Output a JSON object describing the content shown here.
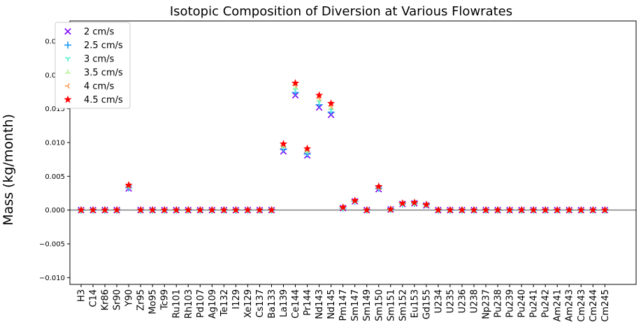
{
  "chart_data": {
    "type": "scatter",
    "title": "Isotopic Composition of Diversion at Various Flowrates",
    "xlabel": "",
    "ylabel": "Mass (kg/month)",
    "ylim": [
      -0.011,
      0.028
    ],
    "yticks": [
      "−0.010",
      "−0.005",
      "0.000",
      "0.005",
      "0.010",
      "0.015",
      "0.020",
      "0.025"
    ],
    "ytick_values": [
      -0.01,
      -0.005,
      0.0,
      0.005,
      0.01,
      0.015,
      0.02,
      0.025
    ],
    "grid": false,
    "zero_line": true,
    "legend_position": "top-left",
    "categories": [
      "H3",
      "C14",
      "Kr86",
      "Sr90",
      "Y90",
      "Zr95",
      "Mo95",
      "Tc99",
      "Ru101",
      "Rh103",
      "Pd107",
      "Ag109",
      "Te132",
      "I129",
      "Xe129",
      "Cs137",
      "Ba133",
      "La139",
      "Ce144",
      "Pr144",
      "Nd143",
      "Nd145",
      "Pm147",
      "Sm147",
      "Sm149",
      "Sm150",
      "Sm151",
      "Sm152",
      "Eu153",
      "Gd155",
      "U234",
      "U235",
      "U236",
      "U238",
      "Np237",
      "Pu238",
      "Pu239",
      "Pu240",
      "Pu241",
      "Pu242",
      "Am241",
      "Am243",
      "Cm243",
      "Cm244",
      "Cm245"
    ],
    "series": [
      {
        "name": "2 cm/s",
        "marker": "x-icon",
        "color": "#7f00ff",
        "values": [
          0,
          0,
          0,
          0,
          0.0032,
          0,
          0,
          0,
          0,
          0,
          0,
          0,
          0,
          0,
          0,
          0,
          0,
          0.0087,
          0.017,
          0.0081,
          0.0152,
          0.0141,
          0.0003,
          0.0013,
          0,
          0.0031,
          0.0001,
          0.0009,
          0.001,
          0.0007,
          0,
          0,
          0,
          0,
          0,
          0,
          0,
          0,
          0,
          0,
          0,
          0,
          0,
          0,
          0
        ]
      },
      {
        "name": "2.5 cm/s",
        "marker": "plus-icon",
        "color": "#1996f3",
        "values": [
          0,
          0,
          0,
          0,
          0.0033,
          0,
          0,
          0,
          0,
          0,
          0,
          0,
          0,
          0,
          0,
          0,
          0,
          0.009,
          0.0174,
          0.0083,
          0.0156,
          0.0145,
          0.0003,
          0.0013,
          0,
          0.0032,
          0.0001,
          0.0009,
          0.001,
          0.0008,
          0,
          0,
          0,
          0,
          0,
          0,
          0,
          0,
          0,
          0,
          0,
          0,
          0,
          0,
          0
        ]
      },
      {
        "name": "3 cm/s",
        "marker": "tri-down-icon",
        "color": "#4df3ce",
        "values": [
          0,
          0,
          0,
          0,
          0.0034,
          0,
          0,
          0,
          0,
          0,
          0,
          0,
          0,
          0,
          0,
          0,
          0,
          0.0092,
          0.0178,
          0.0085,
          0.016,
          0.0148,
          0.0003,
          0.0013,
          0,
          0.0032,
          0.0001,
          0.0009,
          0.001,
          0.0008,
          0,
          0,
          0,
          0,
          0,
          0,
          0,
          0,
          0,
          0,
          0,
          0,
          0,
          0,
          0
        ]
      },
      {
        "name": "3.5 cm/s",
        "marker": "tri-up-icon",
        "color": "#b3f396",
        "values": [
          0,
          0,
          0,
          0,
          0.0035,
          0,
          0,
          0,
          0,
          0,
          0,
          0,
          0,
          0,
          0,
          0,
          0,
          0.0094,
          0.0181,
          0.0087,
          0.0163,
          0.0151,
          0.0004,
          0.0014,
          0,
          0.0033,
          0.0001,
          0.001,
          0.0011,
          0.0008,
          0,
          0,
          0,
          0,
          0,
          0,
          0,
          0,
          0,
          0,
          0,
          0,
          0,
          0,
          0
        ]
      },
      {
        "name": "4 cm/s",
        "marker": "tri-left-icon",
        "color": "#ff964f",
        "values": [
          0,
          0,
          0,
          0,
          0.0036,
          0,
          0,
          0,
          0,
          0,
          0,
          0,
          0,
          0,
          0,
          0,
          0,
          0.0096,
          0.0185,
          0.0089,
          0.0166,
          0.0154,
          0.0004,
          0.0014,
          0,
          0.0034,
          0.0001,
          0.001,
          0.0011,
          0.0008,
          0,
          0,
          0,
          0,
          0,
          0,
          0,
          0,
          0,
          0,
          0,
          0,
          0,
          0,
          0
        ]
      },
      {
        "name": "4.5 cm/s",
        "marker": "star-icon",
        "color": "#ff0000",
        "values": [
          0,
          0,
          0,
          0,
          0.0037,
          0,
          0,
          0,
          0,
          0,
          0,
          0,
          0,
          0,
          0,
          0,
          0,
          0.0098,
          0.0188,
          0.0091,
          0.017,
          0.0158,
          0.0004,
          0.0014,
          0,
          0.0035,
          0.0001,
          0.001,
          0.0011,
          0.0008,
          0,
          0,
          0,
          0,
          0,
          0,
          0,
          0,
          0,
          0,
          0,
          0,
          0,
          0,
          0
        ]
      }
    ]
  }
}
